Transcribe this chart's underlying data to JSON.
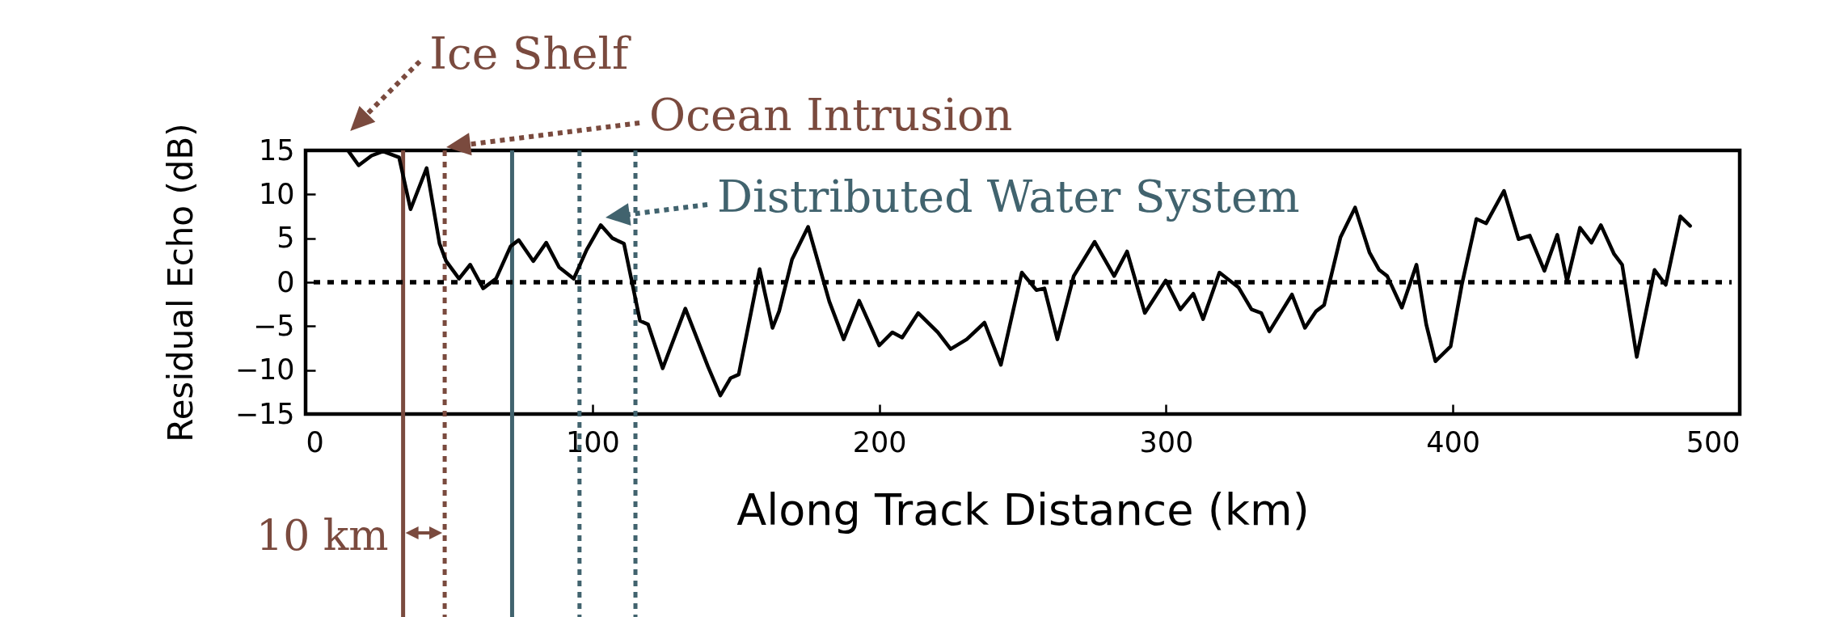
{
  "chart_data": {
    "type": "line",
    "xlabel": "Along Track Distance (km)",
    "ylabel": "Residual Echo (dB)",
    "xlim": [
      0,
      500
    ],
    "ylim": [
      -15,
      15
    ],
    "xticks": [
      0,
      100,
      200,
      300,
      400,
      500
    ],
    "yticks": [
      -15,
      -10,
      -5,
      0,
      5,
      10,
      15
    ],
    "line_style": "solid",
    "series": [
      {
        "color": "#000000",
        "x": [
          15,
          18.5,
          23,
          27,
          32.6,
          36.6,
          42.2,
          46.7,
          49,
          53.5,
          57.4,
          61.9,
          66.4,
          71.5,
          74.3,
          79.4,
          83.9,
          88.4,
          93.5,
          98,
          102.9,
          107,
          111,
          116.6,
          119.4,
          124.5,
          132.4,
          140.3,
          144.6,
          148.2,
          151,
          154.9,
          158.3,
          162.8,
          165.1,
          169.6,
          175.2,
          182.6,
          187.6,
          193,
          200,
          204.6,
          208,
          213.6,
          220.4,
          224.9,
          230.5,
          236.7,
          242.4,
          249.7,
          254.8,
          257.6,
          262.1,
          267.8,
          275.1,
          281.9,
          286.4,
          292.6,
          299.9,
          305,
          309.5,
          312.9,
          318.6,
          325.3,
          329.8,
          333.2,
          336,
          343.9,
          348.4,
          352.3,
          355.1,
          360.8,
          365.9,
          370.9,
          374.3,
          377.1,
          382.2,
          387.3,
          390.7,
          393.9,
          399.2,
          403.1,
          408.2,
          411.6,
          417.8,
          422.9,
          426.8,
          431.9,
          436.4,
          439.8,
          444.3,
          448.3,
          451.6,
          456.2,
          459,
          464.1,
          470.3,
          474.2,
          479.3,
          482.7
        ],
        "values": [
          14.9,
          13.3,
          14.4,
          14.9,
          14.2,
          8.3,
          13,
          4.4,
          2.4,
          0.4,
          2,
          -0.7,
          0.4,
          4.1,
          4.8,
          2.4,
          4.5,
          1.7,
          0.4,
          3.7,
          6.5,
          5,
          4.4,
          -4.4,
          -4.8,
          -9.8,
          -3,
          -9.6,
          -12.9,
          -10.9,
          -10.5,
          -4.1,
          1.5,
          -5.2,
          -3.3,
          2.6,
          6.3,
          -2.2,
          -6.5,
          -2.1,
          -7.2,
          -5.7,
          -6.3,
          -3.5,
          -5.7,
          -7.6,
          -6.5,
          -4.6,
          -9.4,
          1.1,
          -0.9,
          -0.7,
          -6.5,
          0.7,
          4.6,
          0.7,
          3.5,
          -3.5,
          0.2,
          -3.1,
          -1.3,
          -4.2,
          1.1,
          -0.6,
          -3.1,
          -3.5,
          -5.6,
          -1.4,
          -5.2,
          -3.3,
          -2.6,
          5.1,
          8.5,
          3.4,
          1.4,
          0.7,
          -2.9,
          2,
          -4.8,
          -9,
          -7.3,
          -0.3,
          7.2,
          6.7,
          10.4,
          4.9,
          5.3,
          1.3,
          5.4,
          0.1,
          6.2,
          4.5,
          6.5,
          3.2,
          2,
          -8.5,
          1.4,
          -0.3,
          7.5,
          6.4
        ]
      }
    ],
    "ref_lines": [
      {
        "axis": "x",
        "value": 34,
        "color": "#7a4a3e",
        "line_style": "solid"
      },
      {
        "axis": "x",
        "value": 48.5,
        "color": "#7a4a3e",
        "line_style": "dotted"
      },
      {
        "axis": "x",
        "value": 72,
        "color": "#41636e",
        "line_style": "solid"
      },
      {
        "axis": "x",
        "value": 95.5,
        "color": "#41636e",
        "line_style": "dotted"
      },
      {
        "axis": "x",
        "value": 115,
        "color": "#41636e",
        "line_style": "dotted"
      },
      {
        "axis": "y",
        "value": 0,
        "color": "#000000",
        "line_style": "dotted"
      }
    ],
    "annotations": [
      {
        "text": "Ice Shelf",
        "x": 15,
        "y": 15
      },
      "Ocean Intrusion",
      {
        "text": "Distributed Water System",
        "x": 104,
        "y": 7
      },
      "10 km"
    ]
  }
}
